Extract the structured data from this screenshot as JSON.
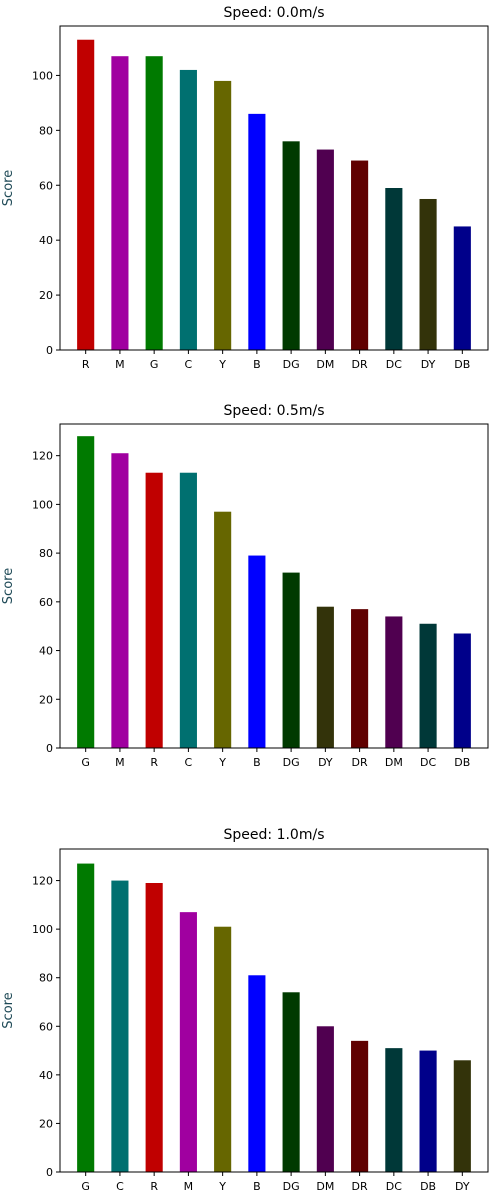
{
  "chart_data": [
    {
      "type": "bar",
      "title": "Speed: 0.0m/s",
      "xlabel": "",
      "ylabel": "Score",
      "ylim": [
        0,
        118
      ],
      "yticks": [
        0,
        20,
        40,
        60,
        80,
        100
      ],
      "categories": [
        "R",
        "M",
        "G",
        "C",
        "Y",
        "B",
        "DG",
        "DM",
        "DR",
        "DC",
        "DY",
        "DB"
      ],
      "values": [
        113,
        107,
        107,
        102,
        98,
        86,
        76,
        73,
        69,
        59,
        55,
        45
      ],
      "colors": [
        "#c00000",
        "#a000a0",
        "#007a00",
        "#007070",
        "#666600",
        "#0000ff",
        "#003a00",
        "#500050",
        "#600000",
        "#003838",
        "#33330a",
        "#00008a"
      ],
      "grid": false,
      "legend": "none"
    },
    {
      "type": "bar",
      "title": "Speed: 0.5m/s",
      "xlabel": "",
      "ylabel": "Score",
      "ylim": [
        0,
        133
      ],
      "yticks": [
        0,
        20,
        40,
        60,
        80,
        100,
        120
      ],
      "categories": [
        "G",
        "M",
        "R",
        "C",
        "Y",
        "B",
        "DG",
        "DY",
        "DR",
        "DM",
        "DC",
        "DB"
      ],
      "values": [
        128,
        121,
        113,
        113,
        97,
        79,
        72,
        58,
        57,
        54,
        51,
        47
      ],
      "colors": [
        "#007a00",
        "#a000a0",
        "#c00000",
        "#007070",
        "#666600",
        "#0000ff",
        "#003a00",
        "#33330a",
        "#600000",
        "#500050",
        "#003838",
        "#00008a"
      ],
      "grid": false,
      "legend": "none"
    },
    {
      "type": "bar",
      "title": "Speed: 1.0m/s",
      "xlabel": "",
      "ylabel": "Score",
      "ylim": [
        0,
        133
      ],
      "yticks": [
        0,
        20,
        40,
        60,
        80,
        100,
        120
      ],
      "categories": [
        "G",
        "C",
        "R",
        "M",
        "Y",
        "B",
        "DG",
        "DM",
        "DR",
        "DC",
        "DB",
        "DY"
      ],
      "values": [
        127,
        120,
        119,
        107,
        101,
        81,
        74,
        60,
        54,
        51,
        50,
        46
      ],
      "colors": [
        "#007a00",
        "#007070",
        "#c00000",
        "#a000a0",
        "#666600",
        "#0000ff",
        "#003a00",
        "#500050",
        "#600000",
        "#003838",
        "#00008a",
        "#33330a"
      ],
      "grid": false,
      "legend": "none"
    }
  ]
}
